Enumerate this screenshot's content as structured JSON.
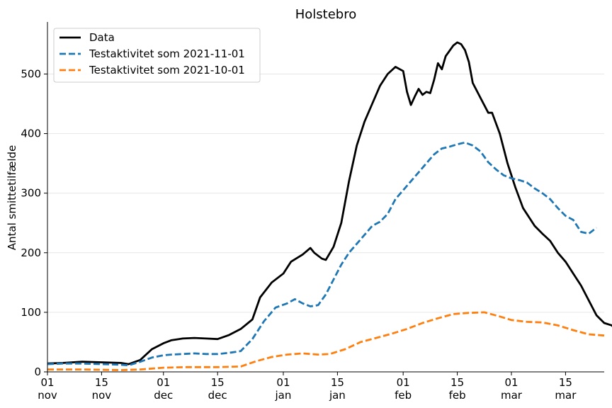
{
  "chart_data": {
    "type": "line",
    "title": "Holstebro",
    "xlabel": "",
    "ylabel": "Antal smittetilfælde",
    "ylim": [
      0,
      585
    ],
    "xlim": [
      "2021-11-01",
      "2022-03-25"
    ],
    "grid": "horizontal",
    "legend_position": "top-left",
    "yticks": [
      0,
      100,
      200,
      300,
      400,
      500
    ],
    "xticks": [
      {
        "date": "2021-11-01",
        "day": "01",
        "month": "nov"
      },
      {
        "date": "2021-11-15",
        "day": "15",
        "month": "nov"
      },
      {
        "date": "2021-12-01",
        "day": "01",
        "month": "dec"
      },
      {
        "date": "2021-12-15",
        "day": "15",
        "month": "dec"
      },
      {
        "date": "2022-01-01",
        "day": "01",
        "month": "jan"
      },
      {
        "date": "2022-01-15",
        "day": "15",
        "month": "jan"
      },
      {
        "date": "2022-02-01",
        "day": "01",
        "month": "feb"
      },
      {
        "date": "2022-02-15",
        "day": "15",
        "month": "feb"
      },
      {
        "date": "2022-03-01",
        "day": "01",
        "month": "mar"
      },
      {
        "date": "2022-03-15",
        "day": "15",
        "month": "mar"
      }
    ],
    "series": [
      {
        "name": "Data",
        "color": "#000000",
        "style": "solid",
        "points": [
          [
            "2021-11-01",
            14
          ],
          [
            "2021-11-05",
            15
          ],
          [
            "2021-11-10",
            17
          ],
          [
            "2021-11-15",
            16
          ],
          [
            "2021-11-20",
            15
          ],
          [
            "2021-11-22",
            13
          ],
          [
            "2021-11-25",
            20
          ],
          [
            "2021-11-28",
            38
          ],
          [
            "2021-12-01",
            48
          ],
          [
            "2021-12-03",
            53
          ],
          [
            "2021-12-06",
            56
          ],
          [
            "2021-12-09",
            57
          ],
          [
            "2021-12-12",
            56
          ],
          [
            "2021-12-15",
            55
          ],
          [
            "2021-12-18",
            62
          ],
          [
            "2021-12-21",
            72
          ],
          [
            "2021-12-24",
            88
          ],
          [
            "2021-12-26",
            125
          ],
          [
            "2021-12-29",
            150
          ],
          [
            "2022-01-01",
            165
          ],
          [
            "2022-01-03",
            185
          ],
          [
            "2022-01-06",
            197
          ],
          [
            "2022-01-08",
            208
          ],
          [
            "2022-01-09",
            200
          ],
          [
            "2022-01-11",
            190
          ],
          [
            "2022-01-12",
            188
          ],
          [
            "2022-01-14",
            210
          ],
          [
            "2022-01-16",
            250
          ],
          [
            "2022-01-18",
            320
          ],
          [
            "2022-01-20",
            380
          ],
          [
            "2022-01-22",
            420
          ],
          [
            "2022-01-24",
            450
          ],
          [
            "2022-01-26",
            480
          ],
          [
            "2022-01-28",
            500
          ],
          [
            "2022-01-30",
            512
          ],
          [
            "2022-02-01",
            505
          ],
          [
            "2022-02-02",
            470
          ],
          [
            "2022-02-03",
            448
          ],
          [
            "2022-02-04",
            462
          ],
          [
            "2022-02-05",
            475
          ],
          [
            "2022-02-06",
            465
          ],
          [
            "2022-02-07",
            470
          ],
          [
            "2022-02-08",
            468
          ],
          [
            "2022-02-09",
            490
          ],
          [
            "2022-02-10",
            518
          ],
          [
            "2022-02-11",
            508
          ],
          [
            "2022-02-12",
            530
          ],
          [
            "2022-02-14",
            548
          ],
          [
            "2022-02-15",
            553
          ],
          [
            "2022-02-16",
            550
          ],
          [
            "2022-02-17",
            540
          ],
          [
            "2022-02-18",
            520
          ],
          [
            "2022-02-19",
            485
          ],
          [
            "2022-02-21",
            460
          ],
          [
            "2022-02-23",
            435
          ],
          [
            "2022-02-24",
            435
          ],
          [
            "2022-02-26",
            400
          ],
          [
            "2022-02-28",
            350
          ],
          [
            "2022-03-02",
            310
          ],
          [
            "2022-03-04",
            275
          ],
          [
            "2022-03-07",
            245
          ],
          [
            "2022-03-09",
            232
          ],
          [
            "2022-03-11",
            220
          ],
          [
            "2022-03-13",
            200
          ],
          [
            "2022-03-15",
            185
          ],
          [
            "2022-03-17",
            165
          ],
          [
            "2022-03-19",
            145
          ],
          [
            "2022-03-21",
            120
          ],
          [
            "2022-03-23",
            95
          ],
          [
            "2022-03-25",
            82
          ],
          [
            "2022-03-27",
            78
          ],
          [
            "2022-03-29",
            60
          ]
        ]
      },
      {
        "name": "Testaktivitet som 2021-11-01",
        "color": "#1f77b4",
        "style": "dashed",
        "points": [
          [
            "2021-11-01",
            13
          ],
          [
            "2021-11-05",
            14
          ],
          [
            "2021-11-10",
            14
          ],
          [
            "2021-11-15",
            13
          ],
          [
            "2021-11-20",
            12
          ],
          [
            "2021-11-22",
            11
          ],
          [
            "2021-11-25",
            17
          ],
          [
            "2021-11-28",
            24
          ],
          [
            "2021-12-01",
            28
          ],
          [
            "2021-12-03",
            29
          ],
          [
            "2021-12-06",
            30
          ],
          [
            "2021-12-09",
            31
          ],
          [
            "2021-12-12",
            30
          ],
          [
            "2021-12-15",
            30
          ],
          [
            "2021-12-18",
            32
          ],
          [
            "2021-12-21",
            35
          ],
          [
            "2021-12-24",
            55
          ],
          [
            "2021-12-27",
            85
          ],
          [
            "2021-12-30",
            108
          ],
          [
            "2022-01-02",
            115
          ],
          [
            "2022-01-04",
            122
          ],
          [
            "2022-01-06",
            115
          ],
          [
            "2022-01-08",
            110
          ],
          [
            "2022-01-10",
            112
          ],
          [
            "2022-01-12",
            130
          ],
          [
            "2022-01-14",
            155
          ],
          [
            "2022-01-16",
            180
          ],
          [
            "2022-01-18",
            200
          ],
          [
            "2022-01-20",
            215
          ],
          [
            "2022-01-22",
            230
          ],
          [
            "2022-01-24",
            245
          ],
          [
            "2022-01-26",
            252
          ],
          [
            "2022-01-28",
            265
          ],
          [
            "2022-01-30",
            290
          ],
          [
            "2022-02-01",
            305
          ],
          [
            "2022-02-03",
            320
          ],
          [
            "2022-02-05",
            335
          ],
          [
            "2022-02-07",
            350
          ],
          [
            "2022-02-09",
            365
          ],
          [
            "2022-02-11",
            375
          ],
          [
            "2022-02-13",
            378
          ],
          [
            "2022-02-15",
            382
          ],
          [
            "2022-02-17",
            385
          ],
          [
            "2022-02-19",
            380
          ],
          [
            "2022-02-21",
            370
          ],
          [
            "2022-02-23",
            352
          ],
          [
            "2022-02-25",
            340
          ],
          [
            "2022-02-27",
            330
          ],
          [
            "2022-03-01",
            325
          ],
          [
            "2022-03-03",
            322
          ],
          [
            "2022-03-05",
            318
          ],
          [
            "2022-03-07",
            308
          ],
          [
            "2022-03-09",
            300
          ],
          [
            "2022-03-11",
            290
          ],
          [
            "2022-03-13",
            275
          ],
          [
            "2022-03-15",
            262
          ],
          [
            "2022-03-17",
            255
          ],
          [
            "2022-03-19",
            235
          ],
          [
            "2022-03-21",
            232
          ],
          [
            "2022-03-23",
            242
          ]
        ]
      },
      {
        "name": "Testaktivitet som 2021-10-01",
        "color": "#ff7f0e",
        "style": "dashed",
        "points": [
          [
            "2021-11-01",
            4
          ],
          [
            "2021-11-10",
            4
          ],
          [
            "2021-11-20",
            3
          ],
          [
            "2021-11-25",
            4
          ],
          [
            "2021-12-01",
            7
          ],
          [
            "2021-12-07",
            8
          ],
          [
            "2021-12-15",
            8
          ],
          [
            "2021-12-21",
            9
          ],
          [
            "2021-12-25",
            18
          ],
          [
            "2021-12-29",
            25
          ],
          [
            "2022-01-02",
            29
          ],
          [
            "2022-01-06",
            31
          ],
          [
            "2022-01-10",
            29
          ],
          [
            "2022-01-13",
            30
          ],
          [
            "2022-01-17",
            38
          ],
          [
            "2022-01-21",
            50
          ],
          [
            "2022-01-25",
            57
          ],
          [
            "2022-01-29",
            64
          ],
          [
            "2022-02-02",
            72
          ],
          [
            "2022-02-06",
            82
          ],
          [
            "2022-02-10",
            90
          ],
          [
            "2022-02-14",
            97
          ],
          [
            "2022-02-18",
            99
          ],
          [
            "2022-02-22",
            100
          ],
          [
            "2022-02-26",
            93
          ],
          [
            "2022-03-01",
            87
          ],
          [
            "2022-03-05",
            84
          ],
          [
            "2022-03-09",
            83
          ],
          [
            "2022-03-13",
            78
          ],
          [
            "2022-03-17",
            70
          ],
          [
            "2022-03-21",
            63
          ],
          [
            "2022-03-25",
            61
          ]
        ]
      }
    ]
  }
}
